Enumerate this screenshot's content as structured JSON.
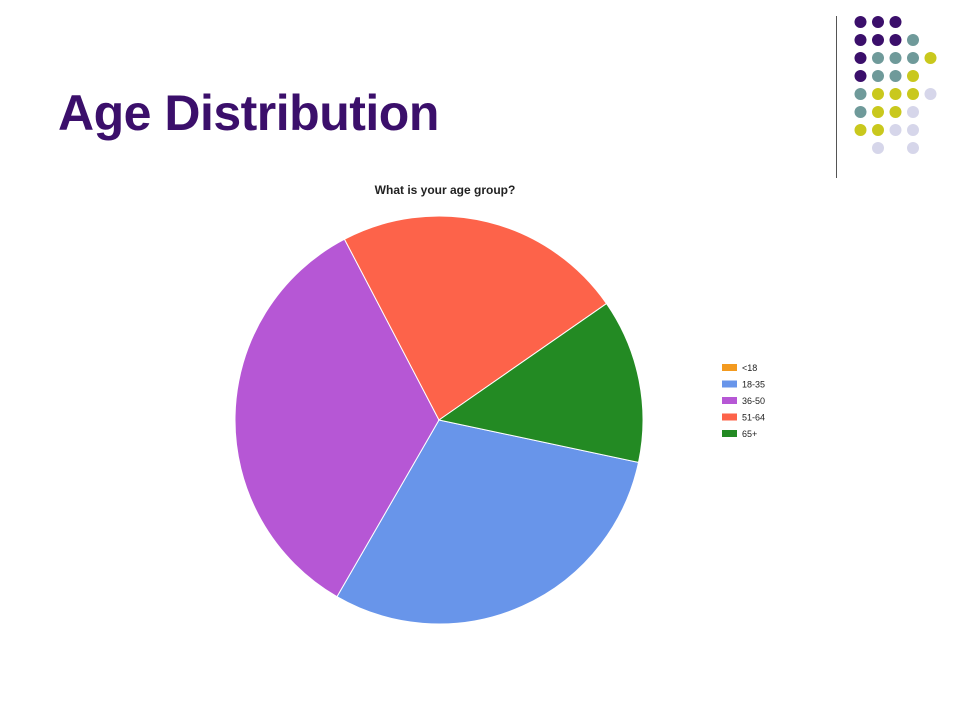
{
  "slide": {
    "title": "Age Distribution"
  },
  "decoration": {
    "dot_colors": {
      "purple": "#3b0f6b",
      "teal": "#6f9a9a",
      "yellow": "#c9c81d",
      "lavender": "#d6d6ea"
    }
  },
  "chart_data": {
    "type": "pie",
    "title": "What is your age group?",
    "legend_position": "right",
    "slices": [
      {
        "label": "<18",
        "value": 0,
        "color": "#f39a1f"
      },
      {
        "label": "18-35",
        "value": 30,
        "color": "#6895ea"
      },
      {
        "label": "36-50",
        "value": 34,
        "color": "#b657d5"
      },
      {
        "label": "51-64",
        "value": 23,
        "color": "#fd634a"
      },
      {
        "label": "65+",
        "value": 13,
        "color": "#238a23"
      }
    ]
  }
}
